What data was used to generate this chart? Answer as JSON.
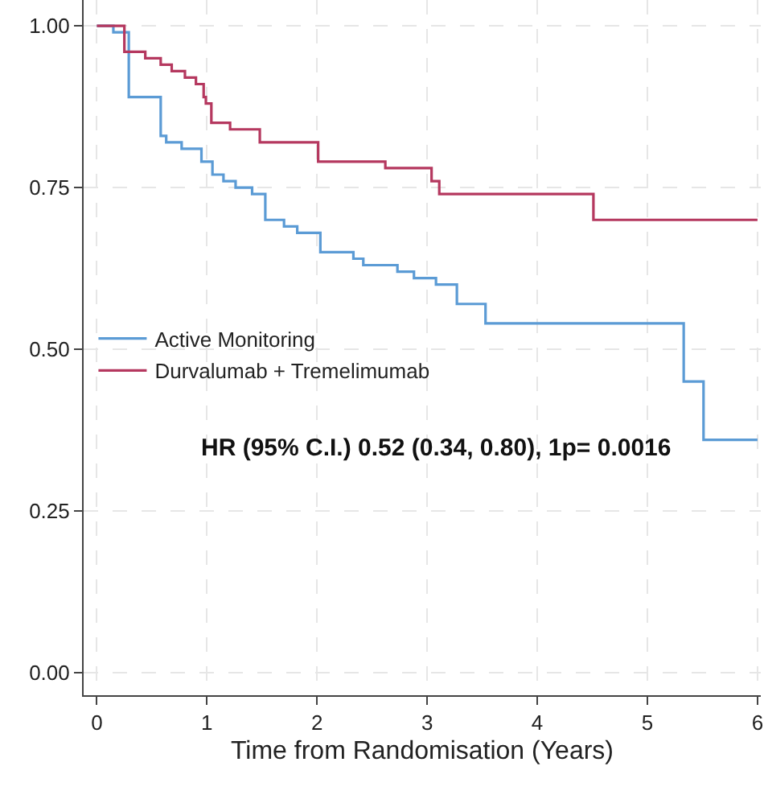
{
  "chart_data": {
    "type": "step",
    "xlabel": "Time from Randomisation (Years)",
    "xlim": [
      -0.12,
      6.03
    ],
    "ylim": [
      -0.035,
      1.04
    ],
    "xticks": [
      0,
      1,
      2,
      3,
      4,
      5,
      6
    ],
    "yticks": [
      {
        "value": 0,
        "label": "0.00"
      },
      {
        "value": 0.25,
        "label": "0.25"
      },
      {
        "value": 0.5,
        "label": "0.50"
      },
      {
        "value": 0.75,
        "label": "0.75"
      },
      {
        "value": 1,
        "label": "1.00"
      }
    ],
    "grid": true,
    "legend": "left",
    "line_style": "solid",
    "marker": "none",
    "annotations": [
      "HR (95% C.I.) 0.52 (0.34, 0.80), 1p= 0.0016"
    ],
    "series": [
      {
        "name": "Active Monitoring",
        "color": "#5b9bd5",
        "x": [
          0,
          0.15,
          0.29,
          0.58,
          0.63,
          0.77,
          0.95,
          1.05,
          1.15,
          1.26,
          1.41,
          1.53,
          1.7,
          1.82,
          2.03,
          2.33,
          2.42,
          2.73,
          2.88,
          3.08,
          3.27,
          3.53,
          5.33,
          5.51,
          6.0
        ],
        "values": [
          1.0,
          0.99,
          0.89,
          0.83,
          0.82,
          0.81,
          0.79,
          0.77,
          0.76,
          0.75,
          0.74,
          0.7,
          0.69,
          0.68,
          0.65,
          0.64,
          0.63,
          0.62,
          0.61,
          0.6,
          0.57,
          0.54,
          0.45,
          0.36,
          0.36
        ]
      },
      {
        "name": "Durvalumab + Tremelimumab",
        "color": "#b5385f",
        "x": [
          0,
          0.25,
          0.44,
          0.58,
          0.68,
          0.8,
          0.9,
          0.97,
          0.99,
          1.04,
          1.21,
          1.48,
          2.01,
          2.62,
          3.04,
          3.11,
          4.51,
          6.0
        ],
        "values": [
          1.0,
          0.96,
          0.95,
          0.94,
          0.93,
          0.92,
          0.91,
          0.89,
          0.88,
          0.85,
          0.84,
          0.82,
          0.79,
          0.78,
          0.76,
          0.74,
          0.7,
          0.7
        ]
      }
    ]
  }
}
